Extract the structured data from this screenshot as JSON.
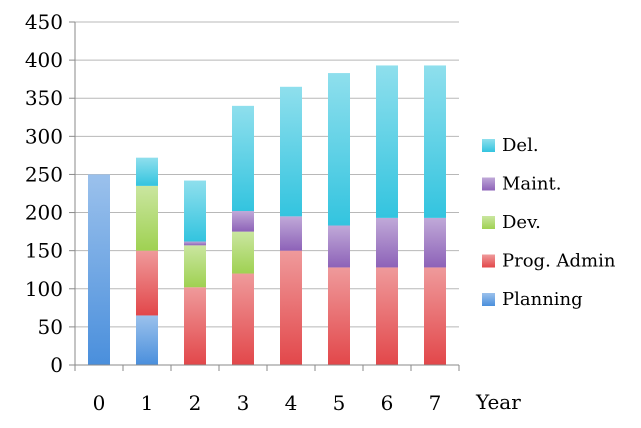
{
  "chart_data": {
    "type": "bar",
    "stacked": true,
    "categories": [
      "0",
      "1",
      "2",
      "3",
      "4",
      "5",
      "6",
      "7"
    ],
    "xlabel": "Year",
    "ylabel": "",
    "ylim": [
      0,
      450
    ],
    "yticks": [
      0,
      50,
      100,
      150,
      200,
      250,
      300,
      350,
      400,
      450
    ],
    "grid": true,
    "legend_position": "right",
    "series": [
      {
        "name": "Planning",
        "color": "#4a8fdc",
        "values": [
          250,
          65,
          0,
          0,
          0,
          0,
          0,
          0
        ]
      },
      {
        "name": "Prog. Admin",
        "color": "#e2474a",
        "values": [
          0,
          85,
          102,
          120,
          150,
          128,
          128,
          128
        ]
      },
      {
        "name": "Dev.",
        "color": "#9fd152",
        "values": [
          0,
          85,
          55,
          55,
          0,
          0,
          0,
          0
        ]
      },
      {
        "name": "Maint.",
        "color": "#8d62b8",
        "values": [
          0,
          0,
          5,
          27,
          45,
          55,
          65,
          65
        ]
      },
      {
        "name": "Del.",
        "color": "#33c4df",
        "values": [
          0,
          37,
          80,
          138,
          170,
          200,
          200,
          200
        ]
      }
    ]
  }
}
